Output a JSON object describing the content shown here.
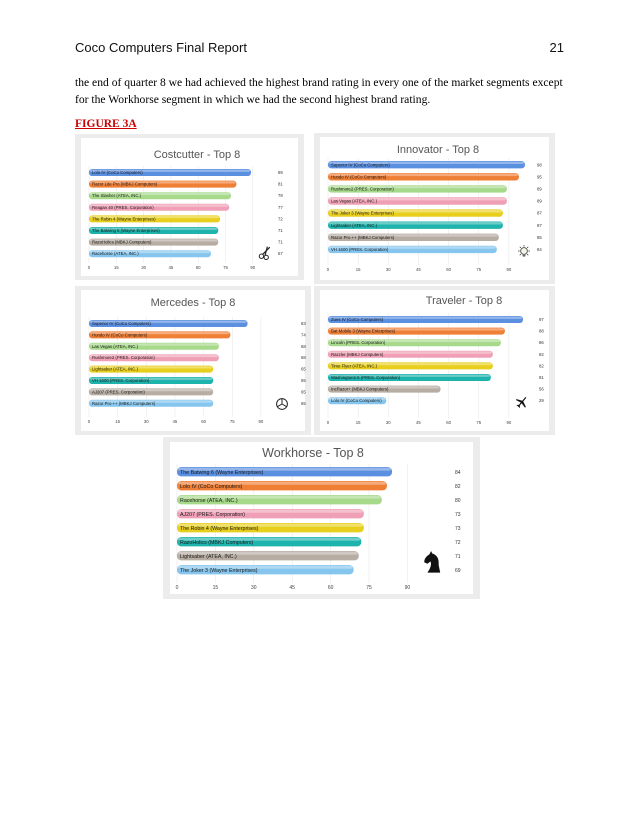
{
  "header": {
    "title": "Coco Computers Final Report",
    "page_number": "21"
  },
  "paragraph": "the end of quarter 8 we had achieved the highest brand rating in every one of the market segments except for the Workhorse segment in which we had the second highest brand rating.",
  "figure_label": "FIGURE 3A",
  "palette": [
    "#5b8fe0",
    "#f07f36",
    "#a6d98a",
    "#f0a0b6",
    "#e8cf1e",
    "#1fb3ad",
    "#b7ada3",
    "#86c6ee"
  ],
  "chart_data": [
    {
      "type": "bar",
      "title": "Costcutter - Top 8",
      "categories": [
        "Lolo IV (CoCo Computers)",
        "Razor Lite Pro (MBKJ Computers)",
        "The Slasher (ATEA, INC.)",
        "Reagan 40 (PRES. Corporation)",
        "The Robin 4 (Wayne Enterprises)",
        "The Batwing 5 (Wayne Enterprises)",
        "RazoHolics (MBKJ Computers)",
        "Racehorse (ATEA, INC.)"
      ],
      "values": [
        89,
        81,
        78,
        77,
        72,
        71,
        71,
        67
      ],
      "xticks": [
        "0",
        "15",
        "30",
        "45",
        "60",
        "75",
        "90"
      ],
      "xlim": [
        0,
        100
      ],
      "icon": "scissors-icon"
    },
    {
      "type": "bar",
      "title": "Innovator - Top 8",
      "categories": [
        "Superior IV (CoCo Computers)",
        "Hundo IV (CoCo Computers)",
        "Rushmore2 (PRES. Corporation)",
        "Las Vegas (ATEA, INC.)",
        "The Joker 3 (Wayne Enterprises)",
        "Lightsaber (ATEA, INC.)",
        "Razor Pro ++ (MBKJ Computers)",
        "VH 1600 (PRES. Corporation)"
      ],
      "values": [
        98,
        95,
        89,
        89,
        87,
        87,
        85,
        84
      ],
      "xticks": [
        "0",
        "15",
        "30",
        "45",
        "60",
        "75",
        "90"
      ],
      "xlim": [
        0,
        100
      ],
      "icon": "lightbulb-icon"
    },
    {
      "type": "bar",
      "title": "Mercedes - Top 8",
      "categories": [
        "Superior IV (CoCo Computers)",
        "Hundo IV (CoCo Computers)",
        "Las Vegas (ATEA, INC.)",
        "Rushmore2 (PRES. Corporation)",
        "Lightsaber (ATEA, INC.)",
        "VH 1600 (PRES. Corporation)",
        "AJ207 (PRES. Corporation)",
        "Razor Pro ++ (MBKJ Computers)"
      ],
      "values": [
        83,
        74,
        68,
        68,
        65,
        65,
        65,
        65
      ],
      "xticks": [
        "0",
        "15",
        "30",
        "45",
        "60",
        "75",
        "90"
      ],
      "xlim": [
        0,
        100
      ],
      "icon": "mercedes-logo-icon"
    },
    {
      "type": "bar",
      "title": "Traveler - Top 8",
      "categories": [
        "Zues IV (CoCo Computers)",
        "Bat Mobile 3 (Wayne Enterprises)",
        "Lincoln (PRES. Corporation)",
        "Razzler (MBKJ Computers)",
        "Time Flyer (ATEA, INC.)",
        "Washington2.5 (PRES. Corporation)",
        "IncRazor+ (MBKJ Computers)",
        "Lolo IV (CoCo Computers)"
      ],
      "values": [
        97,
        88,
        86,
        82,
        82,
        81,
        56,
        29
      ],
      "xticks": [
        "0",
        "15",
        "30",
        "45",
        "60",
        "75",
        "90"
      ],
      "xlim": [
        0,
        100
      ],
      "icon": "airplane-icon"
    },
    {
      "type": "bar",
      "title": "Workhorse - Top 8",
      "categories": [
        "The Batwing 6 (Wayne Enterprises)",
        "Lolo IV (CoCo Computers)",
        "Racehorse (ATEA, INC.)",
        "AJ207 (PRES. Corporation)",
        "The Robin 4 (Wayne Enterprises)",
        "RazoHolics (MBKJ Computers)",
        "Lightsaber (ATEA, INC.)",
        "The Joker 3 (Wayne Enterprises)"
      ],
      "values": [
        84,
        82,
        80,
        73,
        73,
        72,
        71,
        69
      ],
      "xticks": [
        "0",
        "15",
        "30",
        "45",
        "60",
        "75",
        "90"
      ],
      "xlim": [
        0,
        100
      ],
      "icon": "horse-chess-knight-icon"
    }
  ]
}
